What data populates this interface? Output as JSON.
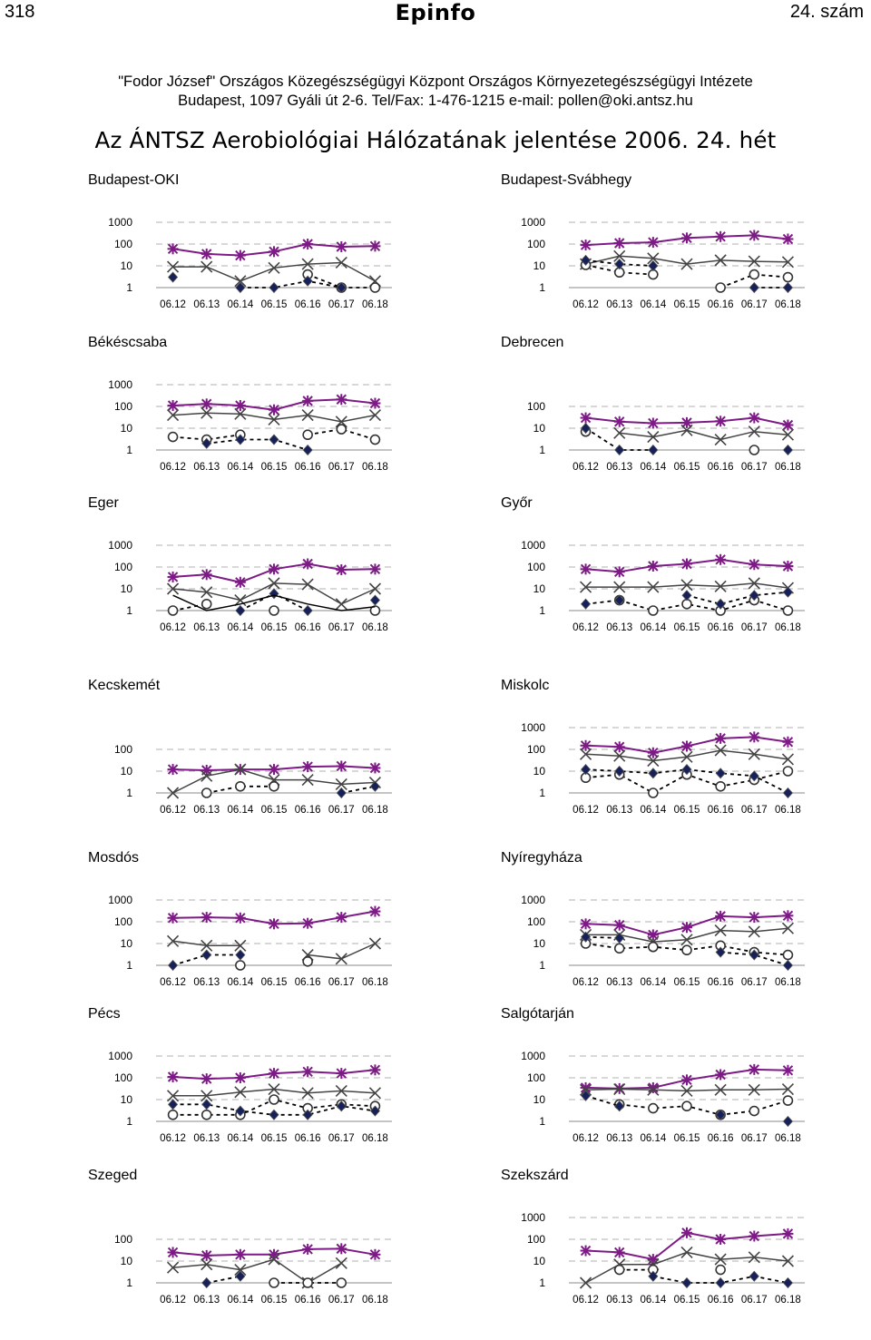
{
  "header": {
    "page_number": "318",
    "logo": "Epinfo",
    "issue": "24. szám"
  },
  "institution": {
    "line1": "\"Fodor József\" Országos Közegészségügyi Központ Országos Környezetegészségügyi Intézete",
    "line2": "Budapest, 1097 Gyáli út 2-6. Tel/Fax: 1-476-1215 e-mail: pollen@oki.antsz.hu"
  },
  "report_title": "Az ÁNTSZ Aerobiológiai Hálózatának jelentése 2006. 24. hét",
  "colors": {
    "grass": "#7d1a86",
    "total": "#444444",
    "ragweed": "#16205a",
    "other": "#444444",
    "grid": "#b0b0b0"
  },
  "chart_data": [
    {
      "type": "line",
      "title": "Budapest-OKI",
      "y_scale": "log",
      "y_ticks": [
        "1",
        "10",
        "100",
        "1000"
      ],
      "ylim": [
        1,
        1000
      ],
      "categories": [
        "06.12",
        "06.13",
        "06.14",
        "06.15",
        "06.16",
        "06.17",
        "06.18"
      ],
      "series": [
        {
          "marker": "star",
          "values": [
            60,
            35,
            30,
            45,
            100,
            75,
            80
          ]
        },
        {
          "marker": "x",
          "values": [
            9,
            9,
            2,
            8,
            12,
            14,
            2
          ]
        },
        {
          "marker": "circle",
          "values": [
            null,
            null,
            null,
            null,
            4,
            1,
            1
          ]
        },
        {
          "marker": "diamond",
          "values": [
            3,
            null,
            1,
            1,
            2,
            1,
            null
          ]
        }
      ]
    },
    {
      "type": "line",
      "title": "Budapest-Svábhegy",
      "y_scale": "log",
      "y_ticks": [
        "1",
        "10",
        "100",
        "1000"
      ],
      "ylim": [
        1,
        1000
      ],
      "categories": [
        "06.12",
        "06.13",
        "06.14",
        "06.15",
        "06.16",
        "06.17",
        "06.18"
      ],
      "series": [
        {
          "marker": "star",
          "values": [
            90,
            110,
            120,
            190,
            220,
            250,
            170
          ]
        },
        {
          "marker": "x",
          "values": [
            12,
            28,
            22,
            12,
            18,
            16,
            15
          ]
        },
        {
          "marker": "circle",
          "values": [
            11,
            5,
            4,
            null,
            1,
            4,
            3
          ]
        },
        {
          "marker": "diamond",
          "values": [
            18,
            12,
            10,
            null,
            null,
            1,
            1
          ]
        }
      ]
    },
    {
      "type": "line",
      "title": "Békéscsaba",
      "y_scale": "log",
      "y_ticks": [
        "1",
        "10",
        "100",
        "1000"
      ],
      "ylim": [
        1,
        1000
      ],
      "categories": [
        "06.12",
        "06.13",
        "06.14",
        "06.15",
        "06.16",
        "06.17",
        "06.18"
      ],
      "series": [
        {
          "marker": "star",
          "values": [
            110,
            130,
            110,
            70,
            180,
            210,
            140
          ]
        },
        {
          "marker": "x",
          "values": [
            40,
            50,
            45,
            25,
            40,
            20,
            40
          ]
        },
        {
          "marker": "circle",
          "values": [
            4,
            3,
            5,
            null,
            5,
            9,
            3
          ]
        },
        {
          "marker": "diamond",
          "values": [
            null,
            2,
            3,
            3,
            1,
            null,
            null
          ]
        }
      ]
    },
    {
      "type": "line",
      "title": "Debrecen",
      "y_scale": "log",
      "y_ticks": [
        "1",
        "10",
        "100"
      ],
      "ylim": [
        1,
        100
      ],
      "categories": [
        "06.12",
        "06.13",
        "06.14",
        "06.15",
        "06.16",
        "06.17",
        "06.18"
      ],
      "series": [
        {
          "marker": "star",
          "values": [
            30,
            20,
            17,
            18,
            21,
            30,
            14
          ]
        },
        {
          "marker": "x",
          "values": [
            null,
            6,
            4,
            8,
            3,
            7,
            5
          ]
        },
        {
          "marker": "circle",
          "values": [
            7,
            null,
            null,
            null,
            null,
            1,
            null
          ]
        },
        {
          "marker": "diamond",
          "values": [
            10,
            1,
            1,
            null,
            null,
            null,
            1
          ]
        }
      ]
    },
    {
      "type": "line",
      "title": "Eger",
      "y_scale": "log",
      "y_ticks": [
        "1",
        "10",
        "100",
        "1000"
      ],
      "ylim": [
        1,
        1000
      ],
      "categories": [
        "06.12",
        "06.13",
        "06.14",
        "06.15",
        "06.16",
        "06.17",
        "06.18"
      ],
      "series": [
        {
          "marker": "star",
          "values": [
            35,
            45,
            20,
            80,
            140,
            75,
            80
          ]
        },
        {
          "marker": "x",
          "values": [
            10,
            7,
            3,
            18,
            16,
            2,
            10
          ]
        },
        {
          "marker": "circle",
          "values": [
            1,
            2,
            null,
            1,
            null,
            null,
            1
          ]
        },
        {
          "marker": "diamond",
          "values": [
            null,
            null,
            1,
            6,
            1,
            null,
            3
          ]
        },
        {
          "marker": "none",
          "values": [
            5,
            1,
            2,
            5,
            2,
            1,
            1.5
          ]
        }
      ]
    },
    {
      "type": "line",
      "title": "Győr",
      "y_scale": "log",
      "y_ticks": [
        "1",
        "10",
        "100",
        "1000"
      ],
      "ylim": [
        1,
        1000
      ],
      "categories": [
        "06.12",
        "06.13",
        "06.14",
        "06.15",
        "06.16",
        "06.17",
        "06.18"
      ],
      "series": [
        {
          "marker": "star",
          "values": [
            80,
            60,
            110,
            140,
            220,
            130,
            110
          ]
        },
        {
          "marker": "x",
          "values": [
            12,
            12,
            12,
            15,
            13,
            18,
            11
          ]
        },
        {
          "marker": "circle",
          "values": [
            null,
            3,
            1,
            2,
            1,
            3,
            1
          ]
        },
        {
          "marker": "diamond",
          "values": [
            2,
            3,
            null,
            5,
            2,
            5,
            7
          ]
        }
      ]
    },
    {
      "type": "line",
      "title": "Kecskemét",
      "y_scale": "log",
      "y_ticks": [
        "1",
        "10",
        "100"
      ],
      "ylim": [
        1,
        100
      ],
      "categories": [
        "06.12",
        "06.13",
        "06.14",
        "06.15",
        "06.16",
        "06.17",
        "06.18"
      ],
      "series": [
        {
          "marker": "star",
          "values": [
            12,
            11,
            12,
            12,
            16,
            17,
            14
          ]
        },
        {
          "marker": "x",
          "values": [
            1,
            6,
            12,
            4,
            4,
            2.5,
            3
          ]
        },
        {
          "marker": "circle",
          "values": [
            null,
            1,
            2,
            2,
            null,
            null,
            null
          ]
        },
        {
          "marker": "diamond",
          "values": [
            null,
            null,
            null,
            null,
            null,
            1,
            2
          ]
        }
      ]
    },
    {
      "type": "line",
      "title": "Miskolc",
      "y_scale": "log",
      "y_ticks": [
        "1",
        "10",
        "100",
        "1000"
      ],
      "ylim": [
        1,
        1000
      ],
      "categories": [
        "06.12",
        "06.13",
        "06.14",
        "06.15",
        "06.16",
        "06.17",
        "06.18"
      ],
      "series": [
        {
          "marker": "star",
          "values": [
            150,
            130,
            70,
            140,
            320,
            370,
            220
          ]
        },
        {
          "marker": "x",
          "values": [
            60,
            50,
            30,
            45,
            90,
            60,
            35
          ]
        },
        {
          "marker": "circle",
          "values": [
            5,
            7,
            1,
            7,
            2,
            4,
            10
          ]
        },
        {
          "marker": "diamond",
          "values": [
            12,
            10,
            8,
            12,
            8,
            6,
            1
          ]
        }
      ]
    },
    {
      "type": "line",
      "title": "Mosdós",
      "y_scale": "log",
      "y_ticks": [
        "1",
        "10",
        "100",
        "1000"
      ],
      "ylim": [
        1,
        1000
      ],
      "categories": [
        "06.12",
        "06.13",
        "06.14",
        "06.15",
        "06.16",
        "06.17",
        "06.18"
      ],
      "series": [
        {
          "marker": "star",
          "values": [
            150,
            160,
            150,
            80,
            85,
            160,
            300
          ]
        },
        {
          "marker": "x",
          "values": [
            13,
            8,
            8,
            null,
            3,
            2,
            10
          ]
        },
        {
          "marker": "circle",
          "values": [
            null,
            null,
            1,
            null,
            1.5,
            null,
            null
          ]
        },
        {
          "marker": "diamond",
          "values": [
            1,
            3,
            3,
            null,
            null,
            null,
            null
          ]
        }
      ]
    },
    {
      "type": "line",
      "title": "Nyíregyháza",
      "y_scale": "log",
      "y_ticks": [
        "1",
        "10",
        "100",
        "1000"
      ],
      "ylim": [
        1,
        1000
      ],
      "categories": [
        "06.12",
        "06.13",
        "06.14",
        "06.15",
        "06.16",
        "06.17",
        "06.18"
      ],
      "series": [
        {
          "marker": "star",
          "values": [
            80,
            70,
            25,
            55,
            180,
            160,
            190
          ]
        },
        {
          "marker": "x",
          "values": [
            25,
            25,
            12,
            15,
            40,
            35,
            50
          ]
        },
        {
          "marker": "circle",
          "values": [
            10,
            6,
            7,
            5,
            8,
            4,
            3
          ]
        },
        {
          "marker": "diamond",
          "values": [
            20,
            18,
            null,
            null,
            4,
            3,
            1
          ]
        }
      ]
    },
    {
      "type": "line",
      "title": "Pécs",
      "y_scale": "log",
      "y_ticks": [
        "1",
        "10",
        "100",
        "1000"
      ],
      "ylim": [
        1,
        1000
      ],
      "categories": [
        "06.12",
        "06.13",
        "06.14",
        "06.15",
        "06.16",
        "06.17",
        "06.18"
      ],
      "series": [
        {
          "marker": "star",
          "values": [
            110,
            90,
            100,
            160,
            190,
            160,
            230
          ]
        },
        {
          "marker": "x",
          "values": [
            15,
            15,
            22,
            30,
            20,
            25,
            20
          ]
        },
        {
          "marker": "circle",
          "values": [
            2,
            2,
            2,
            10,
            4,
            6,
            5
          ]
        },
        {
          "marker": "diamond",
          "values": [
            6,
            6,
            3,
            2,
            2,
            5,
            3
          ]
        }
      ]
    },
    {
      "type": "line",
      "title": "Salgótarján",
      "y_scale": "log",
      "y_ticks": [
        "1",
        "10",
        "100",
        "1000"
      ],
      "ylim": [
        1,
        1000
      ],
      "categories": [
        "06.12",
        "06.13",
        "06.14",
        "06.15",
        "06.16",
        "06.17",
        "06.18"
      ],
      "series": [
        {
          "marker": "star",
          "values": [
            35,
            32,
            35,
            80,
            140,
            240,
            220
          ]
        },
        {
          "marker": "x",
          "values": [
            28,
            30,
            28,
            25,
            28,
            28,
            30
          ]
        },
        {
          "marker": "circle",
          "values": [
            null,
            6,
            4,
            5,
            2,
            3,
            9
          ]
        },
        {
          "marker": "diamond",
          "values": [
            15,
            5,
            null,
            null,
            2,
            null,
            1
          ]
        }
      ]
    },
    {
      "type": "line",
      "title": "Szeged",
      "y_scale": "log",
      "y_ticks": [
        "1",
        "10",
        "100"
      ],
      "ylim": [
        1,
        100
      ],
      "categories": [
        "06.12",
        "06.13",
        "06.14",
        "06.15",
        "06.16",
        "06.17",
        "06.18"
      ],
      "series": [
        {
          "marker": "star",
          "values": [
            25,
            18,
            20,
            20,
            35,
            37,
            20
          ]
        },
        {
          "marker": "x",
          "values": [
            5,
            7,
            4,
            12,
            1,
            8,
            null
          ]
        },
        {
          "marker": "circle",
          "values": [
            null,
            null,
            null,
            1,
            1,
            1,
            null
          ]
        },
        {
          "marker": "diamond",
          "values": [
            null,
            1,
            2,
            null,
            null,
            null,
            null
          ]
        }
      ]
    },
    {
      "type": "line",
      "title": "Szekszárd",
      "y_scale": "log",
      "y_ticks": [
        "1",
        "10",
        "100",
        "1000"
      ],
      "ylim": [
        1,
        1000
      ],
      "categories": [
        "06.12",
        "06.13",
        "06.14",
        "06.15",
        "06.16",
        "06.17",
        "06.18"
      ],
      "series": [
        {
          "marker": "star",
          "values": [
            30,
            25,
            12,
            200,
            100,
            140,
            180
          ]
        },
        {
          "marker": "x",
          "values": [
            1,
            7,
            7,
            25,
            12,
            15,
            10
          ]
        },
        {
          "marker": "circle",
          "values": [
            null,
            4,
            4,
            null,
            4,
            null,
            null
          ]
        },
        {
          "marker": "diamond",
          "values": [
            null,
            null,
            2,
            1,
            1,
            2,
            1
          ]
        }
      ]
    }
  ]
}
